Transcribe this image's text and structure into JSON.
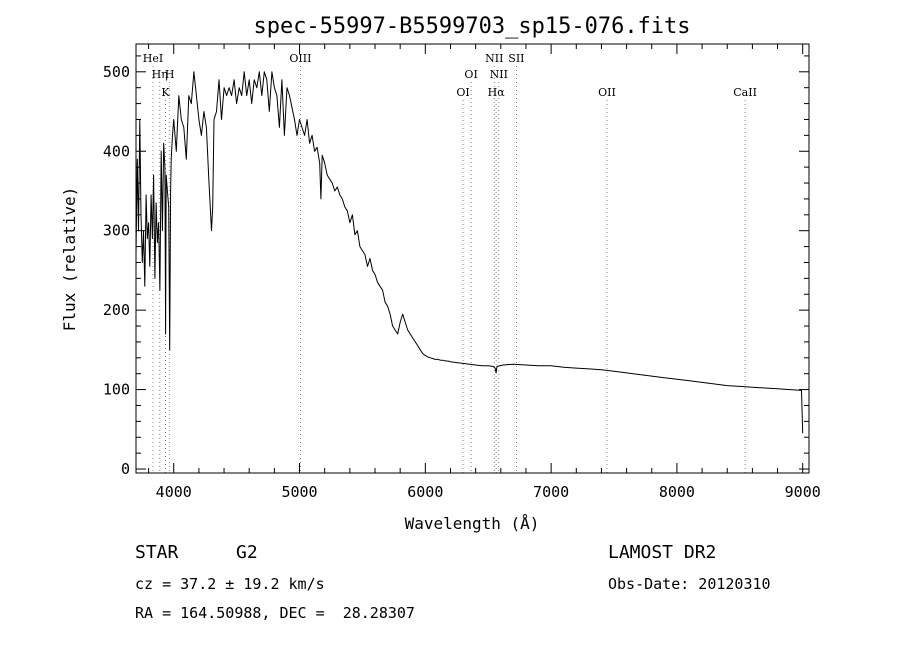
{
  "chart_data": {
    "type": "line",
    "title": "spec-55997-B5599703_sp15-076.fits",
    "xlabel": "Wavelength (Å)",
    "ylabel": "Flux (relative)",
    "xlim": [
      3700,
      9050
    ],
    "ylim": [
      -5,
      535
    ],
    "xticks": [
      4000,
      5000,
      6000,
      7000,
      8000,
      9000
    ],
    "yticks": [
      0,
      100,
      200,
      300,
      400,
      500
    ],
    "grid": false,
    "series": [
      {
        "x": [
          3700,
          3710,
          3720,
          3730,
          3740,
          3750,
          3760,
          3770,
          3780,
          3790,
          3800,
          3810,
          3820,
          3830,
          3840,
          3850,
          3860,
          3870,
          3880,
          3890,
          3900,
          3910,
          3920,
          3930,
          3935,
          3940,
          3950,
          3960,
          3968,
          3975,
          3980,
          3990,
          4000,
          4020,
          4040,
          4060,
          4080,
          4100,
          4120,
          4140,
          4160,
          4180,
          4200,
          4220,
          4240,
          4260,
          4280,
          4300,
          4310,
          4320,
          4340,
          4360,
          4380,
          4400,
          4420,
          4440,
          4460,
          4480,
          4500,
          4520,
          4540,
          4560,
          4580,
          4600,
          4620,
          4640,
          4660,
          4680,
          4700,
          4720,
          4740,
          4760,
          4780,
          4800,
          4820,
          4840,
          4860,
          4880,
          4900,
          4920,
          4940,
          4960,
          4980,
          5000,
          5020,
          5040,
          5060,
          5080,
          5100,
          5120,
          5140,
          5160,
          5170,
          5180,
          5200,
          5220,
          5240,
          5260,
          5280,
          5300,
          5320,
          5340,
          5360,
          5380,
          5400,
          5420,
          5440,
          5460,
          5480,
          5500,
          5520,
          5540,
          5560,
          5580,
          5600,
          5620,
          5640,
          5660,
          5680,
          5700,
          5720,
          5740,
          5760,
          5780,
          5800,
          5820,
          5840,
          5860,
          5880,
          5900,
          5920,
          5940,
          5960,
          5980,
          6000,
          6020,
          6040,
          6060,
          6080,
          6100,
          6120,
          6140,
          6160,
          6180,
          6200,
          6250,
          6300,
          6350,
          6400,
          6450,
          6500,
          6540,
          6555,
          6563,
          6570,
          6590,
          6620,
          6700,
          6800,
          6900,
          7000,
          7100,
          7200,
          7300,
          7400,
          7500,
          7600,
          7700,
          7800,
          7900,
          8000,
          8100,
          8200,
          8300,
          8400,
          8500,
          8600,
          8700,
          8800,
          8900,
          8990,
          9000
        ],
        "values": [
          270,
          390,
          300,
          440,
          320,
          260,
          300,
          230,
          345,
          290,
          310,
          255,
          345,
          290,
          370,
          240,
          335,
          285,
          310,
          225,
          400,
          300,
          410,
          380,
          170,
          370,
          350,
          330,
          150,
          350,
          390,
          420,
          440,
          400,
          470,
          440,
          430,
          390,
          470,
          460,
          500,
          470,
          440,
          420,
          450,
          430,
          360,
          300,
          330,
          440,
          450,
          490,
          440,
          480,
          470,
          480,
          470,
          490,
          460,
          480,
          470,
          500,
          470,
          490,
          460,
          490,
          480,
          500,
          470,
          500,
          490,
          450,
          500,
          480,
          470,
          430,
          490,
          420,
          480,
          470,
          455,
          440,
          420,
          440,
          430,
          420,
          440,
          410,
          420,
          400,
          405,
          385,
          340,
          395,
          385,
          370,
          365,
          360,
          350,
          355,
          345,
          340,
          330,
          325,
          310,
          320,
          295,
          300,
          280,
          275,
          270,
          255,
          265,
          250,
          245,
          235,
          230,
          225,
          210,
          205,
          195,
          180,
          175,
          170,
          185,
          195,
          185,
          175,
          170,
          165,
          160,
          155,
          150,
          145,
          143,
          141,
          140,
          139,
          138,
          138,
          137,
          137,
          136,
          136,
          135,
          134,
          133,
          132,
          131,
          130,
          130,
          129,
          127,
          121,
          129,
          130,
          131,
          132,
          131,
          130,
          130,
          128,
          127,
          126,
          125,
          123,
          121,
          119,
          117,
          115,
          113,
          111,
          109,
          107,
          105,
          104,
          103,
          102,
          101,
          100,
          99,
          45
        ]
      }
    ],
    "line_labels": [
      {
        "x": 3835,
        "label": "HeI",
        "row": 0
      },
      {
        "x": 3889,
        "label": "Hη",
        "row": 1
      },
      {
        "x": 3934,
        "label": "K",
        "row": 2
      },
      {
        "x": 3968,
        "label": "H",
        "row": 1
      },
      {
        "x": 5007,
        "label": "OIII",
        "row": 0
      },
      {
        "x": 6300,
        "label": "OI",
        "row": 2
      },
      {
        "x": 6364,
        "label": "OI",
        "row": 1
      },
      {
        "x": 6548,
        "label": "NII",
        "row": 0
      },
      {
        "x": 6563,
        "label": "Hα",
        "row": 2
      },
      {
        "x": 6584,
        "label": "NII",
        "row": 1
      },
      {
        "x": 6724,
        "label": "SII",
        "row": 0
      },
      {
        "x": 7444,
        "label": "OII",
        "row": 2
      },
      {
        "x": 8542,
        "label": "CaII",
        "row": 2
      }
    ]
  },
  "info": {
    "object_type": "STAR",
    "subclass": "G2",
    "survey": "LAMOST DR2",
    "cz": "cz = 37.2 ± 19.2 km/s",
    "obs_date": "Obs-Date: 20120310",
    "coords": "RA = 164.50988, DEC =  28.28307"
  }
}
